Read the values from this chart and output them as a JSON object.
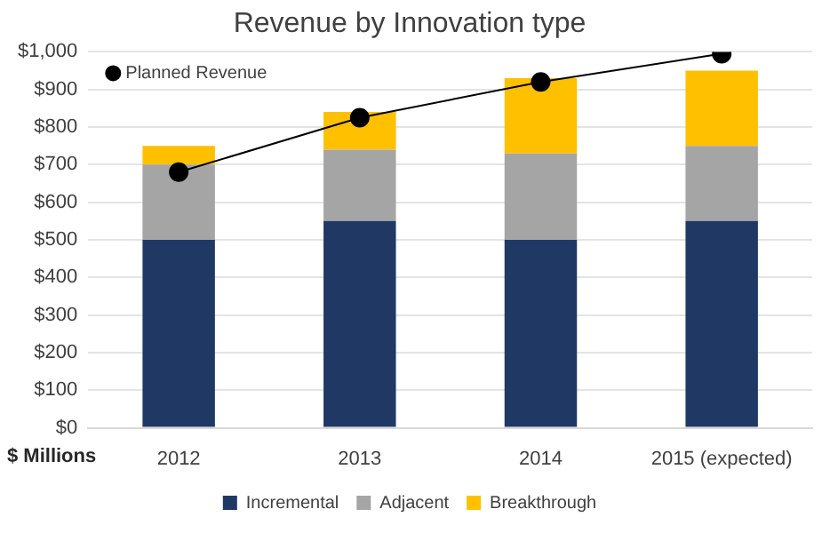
{
  "chart_data": {
    "type": "bar",
    "title": "Revenue by Innovation type",
    "stacked": true,
    "categories": [
      "2012",
      "2013",
      "2014",
      "2015 (expected)"
    ],
    "series": [
      {
        "name": "Incremental",
        "color": "#203864",
        "values": [
          500,
          550,
          500,
          550
        ]
      },
      {
        "name": "Adjacent",
        "color": "#a5a5a5",
        "values": [
          200,
          190,
          230,
          200
        ]
      },
      {
        "name": "Breakthrough",
        "color": "#ffc000",
        "values": [
          50,
          100,
          200,
          200
        ]
      },
      {
        "name": "Planned Revenue",
        "type": "line",
        "color": "#000000",
        "marker": "circle",
        "values": [
          680,
          825,
          920,
          995
        ]
      }
    ],
    "ylim": [
      0,
      1000
    ],
    "yticks": [
      {
        "value": 0,
        "label": "$0"
      },
      {
        "value": 100,
        "label": "$100"
      },
      {
        "value": 200,
        "label": "$200"
      },
      {
        "value": 300,
        "label": "$300"
      },
      {
        "value": 400,
        "label": "$400"
      },
      {
        "value": 500,
        "label": "$500"
      },
      {
        "value": 600,
        "label": "$600"
      },
      {
        "value": 700,
        "label": "$700"
      },
      {
        "value": 800,
        "label": "$800"
      },
      {
        "value": 900,
        "label": "$900"
      },
      {
        "value": 1000,
        "label": "$1,000"
      }
    ],
    "grid": "y",
    "legend": "bottom",
    "annotations": [
      "$ Millions"
    ]
  }
}
